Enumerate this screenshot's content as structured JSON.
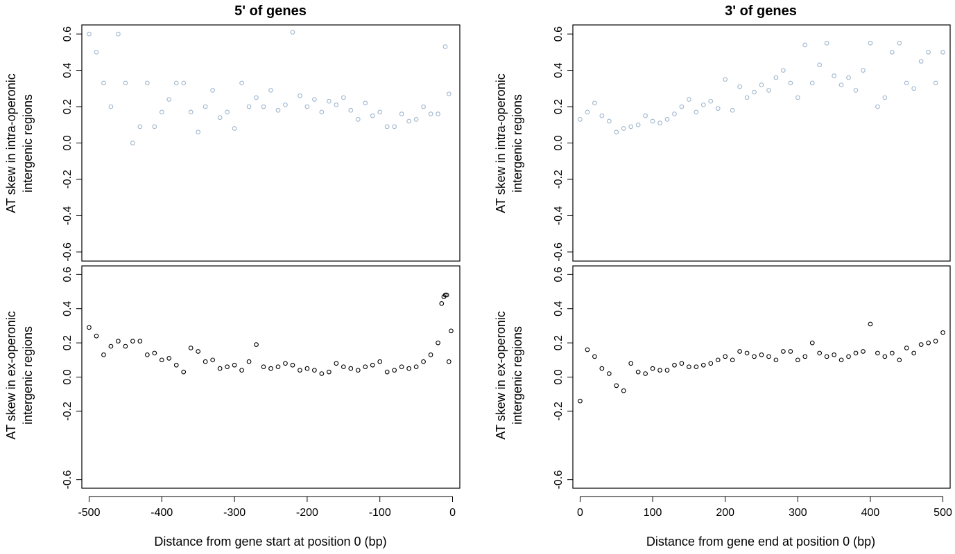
{
  "figure": {
    "titles": [
      "5' of genes",
      "3' of genes"
    ],
    "xlabels": [
      "Distance from gene start at position 0 (bp)",
      "Distance from gene end at position 0 (bp)"
    ],
    "ylabels": {
      "top": [
        "AT skew in intra-operonic",
        "intergenic regions"
      ],
      "bottom": [
        "AT skew in ex-operonic",
        "intergenic regions"
      ]
    }
  },
  "chart_data": [
    {
      "type": "scatter",
      "panel": "5' top",
      "title": "5' of genes",
      "ylabel": "AT skew in intra-operonic intergenic regions",
      "xlabel": "",
      "xlim": [
        -510,
        10
      ],
      "ylim": [
        -0.65,
        0.65
      ],
      "xticks": [
        -500,
        -400,
        -300,
        -200,
        -100,
        0
      ],
      "yticks": [
        -0.6,
        -0.4,
        -0.2,
        0.0,
        0.2,
        0.4,
        0.6
      ],
      "ytick_labels": [
        "-0.6",
        "-0.4",
        "-0.2",
        "0.0",
        "0.2",
        "0.4",
        "0.6"
      ],
      "show_xticks": false,
      "marker_color": "#9fb6cd",
      "grid": false,
      "trend": "points at positions -500..0 bp; spread about ±0.6 at -500 narrowing to about ±0.2 near 0; values cluster at 0.0, ±0.2, ±0.33, ±0.5 far from gene; burst to 0.5–0.6 at about -10 bp",
      "x": [
        -500,
        -490,
        -480,
        -470,
        -460,
        -450,
        -440,
        -430,
        -420,
        -410,
        -400,
        -390,
        -380,
        -370,
        -360,
        -350,
        -340,
        -330,
        -320,
        -310,
        -300,
        -290,
        -280,
        -270,
        -260,
        -250,
        -240,
        -230,
        -220,
        -210,
        -200,
        -190,
        -180,
        -170,
        -160,
        -150,
        -140,
        -130,
        -120,
        -110,
        -100,
        -90,
        -80,
        -70,
        -60,
        -50,
        -40,
        -30,
        -20,
        -10,
        -5
      ],
      "y": [
        0.6,
        0.5,
        0.33,
        0.2,
        0.6,
        0.33,
        0.0,
        0.09,
        0.33,
        0.09,
        0.17,
        0.24,
        0.33,
        0.33,
        0.17,
        0.06,
        0.2,
        0.29,
        0.14,
        0.17,
        0.08,
        0.33,
        0.2,
        0.25,
        0.2,
        0.29,
        0.18,
        0.21,
        0.61,
        0.26,
        0.2,
        0.24,
        0.17,
        0.23,
        0.21,
        0.25,
        0.18,
        0.13,
        0.22,
        0.15,
        0.17,
        0.09,
        0.09,
        0.16,
        0.12,
        0.13,
        0.2,
        0.16,
        0.16,
        0.53,
        0.27
      ]
    },
    {
      "type": "scatter",
      "panel": "3' top",
      "title": "3' of genes",
      "ylabel": "AT skew in intra-operonic intergenic regions",
      "xlabel": "",
      "xlim": [
        -10,
        510
      ],
      "ylim": [
        -0.65,
        0.65
      ],
      "xticks": [
        0,
        100,
        200,
        300,
        400,
        500
      ],
      "yticks": [
        -0.6,
        -0.4,
        -0.2,
        0.0,
        0.2,
        0.4,
        0.6
      ],
      "ytick_labels": [
        "-0.6",
        "-0.4",
        "-0.2",
        "0.0",
        "0.2",
        "0.4",
        "0.6"
      ],
      "show_xticks": false,
      "marker_color": "#9fb6cd",
      "grid": false,
      "trend": "points at positions 0..500 bp; tight near 0 (about ±0.2) widening to about ±0.6 at 500 bp",
      "x": [
        0,
        10,
        20,
        30,
        40,
        50,
        60,
        70,
        80,
        90,
        100,
        110,
        120,
        130,
        140,
        150,
        160,
        170,
        180,
        190,
        200,
        210,
        220,
        230,
        240,
        250,
        260,
        270,
        280,
        290,
        300,
        310,
        320,
        330,
        340,
        350,
        360,
        370,
        380,
        390,
        400,
        410,
        420,
        430,
        440,
        450,
        460,
        470,
        480,
        490,
        500
      ],
      "y": [
        0.13,
        0.17,
        0.22,
        0.15,
        0.12,
        0.06,
        0.08,
        0.09,
        0.1,
        0.15,
        0.12,
        0.11,
        0.13,
        0.16,
        0.2,
        0.24,
        0.17,
        0.21,
        0.23,
        0.19,
        0.35,
        0.18,
        0.31,
        0.25,
        0.28,
        0.32,
        0.29,
        0.36,
        0.4,
        0.33,
        0.25,
        0.54,
        0.33,
        0.43,
        0.55,
        0.37,
        0.32,
        0.36,
        0.29,
        0.4,
        0.55,
        0.2,
        0.25,
        0.5,
        0.55,
        0.33,
        0.3,
        0.45,
        0.5,
        0.33,
        0.5
      ]
    },
    {
      "type": "scatter",
      "panel": "5' bottom",
      "title": "",
      "ylabel": "AT skew in ex-operonic intergenic regions",
      "xlabel": "Distance from gene start at position 0 (bp)",
      "xlim": [
        -510,
        10
      ],
      "ylim": [
        -0.65,
        0.65
      ],
      "xticks": [
        -500,
        -400,
        -300,
        -200,
        -100,
        0
      ],
      "xtick_labels": [
        "-500",
        "-400",
        "-300",
        "-200",
        "-100",
        "0"
      ],
      "yticks": [
        -0.6,
        -0.2,
        0.0,
        0.2,
        0.4,
        0.6
      ],
      "ytick_labels": [
        "-0.6",
        "-0.2",
        "0.0",
        "0.2",
        "0.4",
        "0.6"
      ],
      "show_xticks": true,
      "marker_color": "#000000",
      "grid": false,
      "trend": "points at positions -500..0 bp; scatter about ±0.2 at -500 narrowing to about ±0.05 near -100; sharp spike to about 0.48 at -10 bp",
      "x": [
        -500,
        -490,
        -480,
        -470,
        -460,
        -450,
        -440,
        -430,
        -420,
        -410,
        -400,
        -390,
        -380,
        -370,
        -360,
        -350,
        -340,
        -330,
        -320,
        -310,
        -300,
        -290,
        -280,
        -270,
        -260,
        -250,
        -240,
        -230,
        -220,
        -210,
        -200,
        -190,
        -180,
        -170,
        -160,
        -150,
        -140,
        -130,
        -120,
        -110,
        -100,
        -90,
        -80,
        -70,
        -60,
        -50,
        -40,
        -30,
        -20,
        -15,
        -12,
        -10,
        -8,
        -5,
        -2
      ],
      "y": [
        0.29,
        0.24,
        0.13,
        0.18,
        0.21,
        0.18,
        0.21,
        0.21,
        0.13,
        0.14,
        0.1,
        0.11,
        0.07,
        0.03,
        0.17,
        0.15,
        0.09,
        0.1,
        0.05,
        0.06,
        0.07,
        0.04,
        0.09,
        0.19,
        0.06,
        0.05,
        0.06,
        0.08,
        0.07,
        0.04,
        0.05,
        0.04,
        0.02,
        0.03,
        0.08,
        0.06,
        0.05,
        0.04,
        0.06,
        0.07,
        0.09,
        0.03,
        0.04,
        0.06,
        0.05,
        0.06,
        0.09,
        0.13,
        0.2,
        0.43,
        0.47,
        0.48,
        0.48,
        0.09,
        0.27
      ]
    },
    {
      "type": "scatter",
      "panel": "3' bottom",
      "title": "",
      "ylabel": "AT skew in ex-operonic intergenic regions",
      "xlabel": "Distance from gene end at position 0 (bp)",
      "xlim": [
        -10,
        510
      ],
      "ylim": [
        -0.65,
        0.65
      ],
      "xticks": [
        0,
        100,
        200,
        300,
        400,
        500
      ],
      "xtick_labels": [
        "0",
        "100",
        "200",
        "300",
        "400",
        "500"
      ],
      "yticks": [
        -0.6,
        -0.2,
        0.0,
        0.2,
        0.4,
        0.6
      ],
      "ytick_labels": [
        "-0.6",
        "-0.2",
        "0.0",
        "0.2",
        "0.4",
        "0.6"
      ],
      "show_xticks": true,
      "marker_color": "#000000",
      "grid": false,
      "trend": "points at positions 0..500 bp; about 0.05–0.15 near 0, dip to about -0.1 around 50 bp, then slowly rising mean with spread about ±0.1–0.2 up to 500 bp",
      "x": [
        0,
        10,
        20,
        30,
        40,
        50,
        60,
        70,
        80,
        90,
        100,
        110,
        120,
        130,
        140,
        150,
        160,
        170,
        180,
        190,
        200,
        210,
        220,
        230,
        240,
        250,
        260,
        270,
        280,
        290,
        300,
        310,
        320,
        330,
        340,
        350,
        360,
        370,
        380,
        390,
        400,
        410,
        420,
        430,
        440,
        450,
        460,
        470,
        480,
        490,
        500
      ],
      "y": [
        -0.14,
        0.16,
        0.12,
        0.05,
        0.02,
        -0.05,
        -0.08,
        0.08,
        0.03,
        0.02,
        0.05,
        0.04,
        0.04,
        0.07,
        0.08,
        0.06,
        0.06,
        0.07,
        0.08,
        0.1,
        0.12,
        0.1,
        0.15,
        0.14,
        0.12,
        0.13,
        0.12,
        0.1,
        0.15,
        0.15,
        0.1,
        0.12,
        0.2,
        0.14,
        0.12,
        0.13,
        0.1,
        0.12,
        0.14,
        0.15,
        0.31,
        0.14,
        0.12,
        0.14,
        0.1,
        0.17,
        0.14,
        0.19,
        0.2,
        0.21,
        0.26
      ]
    }
  ]
}
